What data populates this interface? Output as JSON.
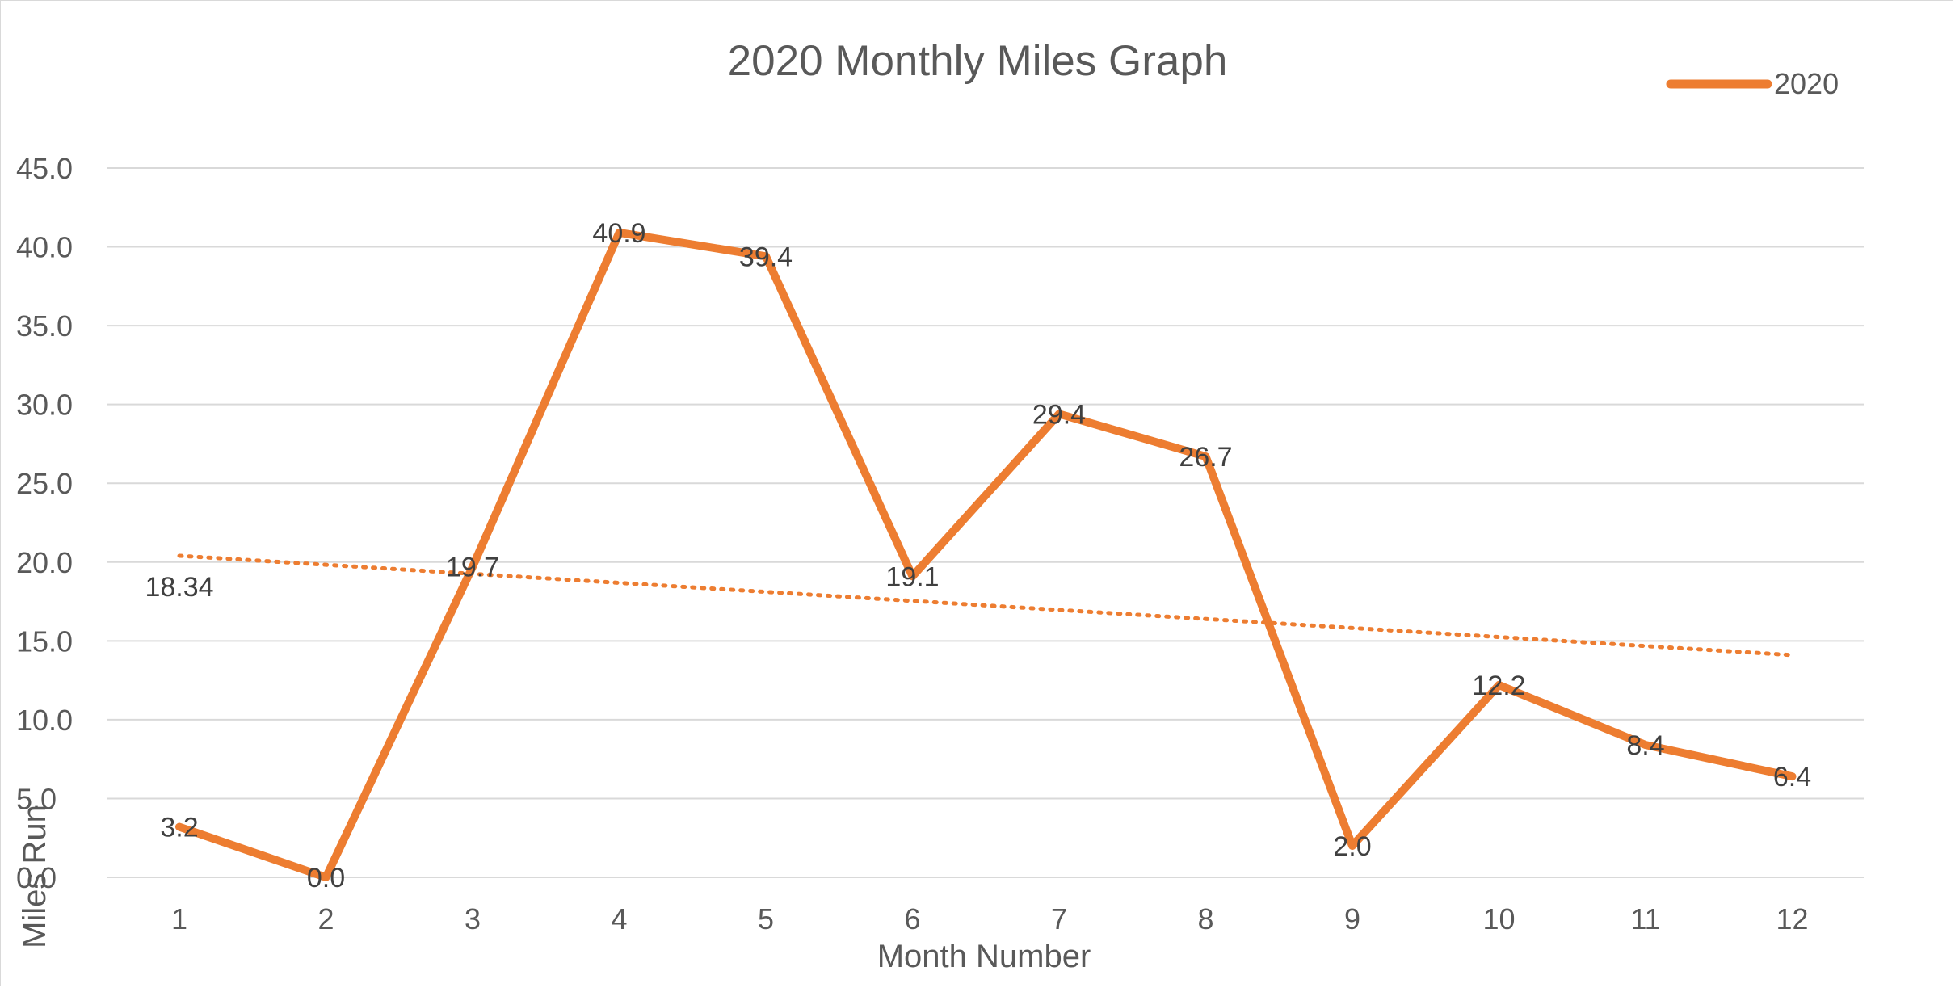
{
  "chart_data": {
    "type": "line",
    "title": "2020 Monthly Miles Graph",
    "xlabel": "Month Number",
    "ylabel": "Miles Run",
    "categories": [
      "1",
      "2",
      "3",
      "4",
      "5",
      "6",
      "7",
      "8",
      "9",
      "10",
      "11",
      "12"
    ],
    "series": [
      {
        "name": "2020",
        "color": "#ed7d31",
        "values": [
          3.2,
          0.0,
          19.7,
          40.9,
          39.4,
          19.1,
          29.4,
          26.7,
          2.0,
          12.2,
          8.4,
          6.4
        ],
        "data_labels": [
          "3.2",
          "0.0",
          "19.7",
          "40.9",
          "39.4",
          "19.1",
          "29.4",
          "26.7",
          "2.0",
          "12.2",
          "8.4",
          "6.4"
        ]
      }
    ],
    "trendline": {
      "type": "linear",
      "style": "dotted",
      "color": "#ed7d31",
      "start_value": 20.4,
      "end_value": 14.1,
      "label": "18.34"
    },
    "ylim": [
      0,
      45
    ],
    "yticks": [
      "0.0",
      "5.0",
      "10.0",
      "15.0",
      "20.0",
      "25.0",
      "30.0",
      "35.0",
      "40.0",
      "45.0"
    ],
    "grid": true,
    "legend_position": "top-right"
  }
}
